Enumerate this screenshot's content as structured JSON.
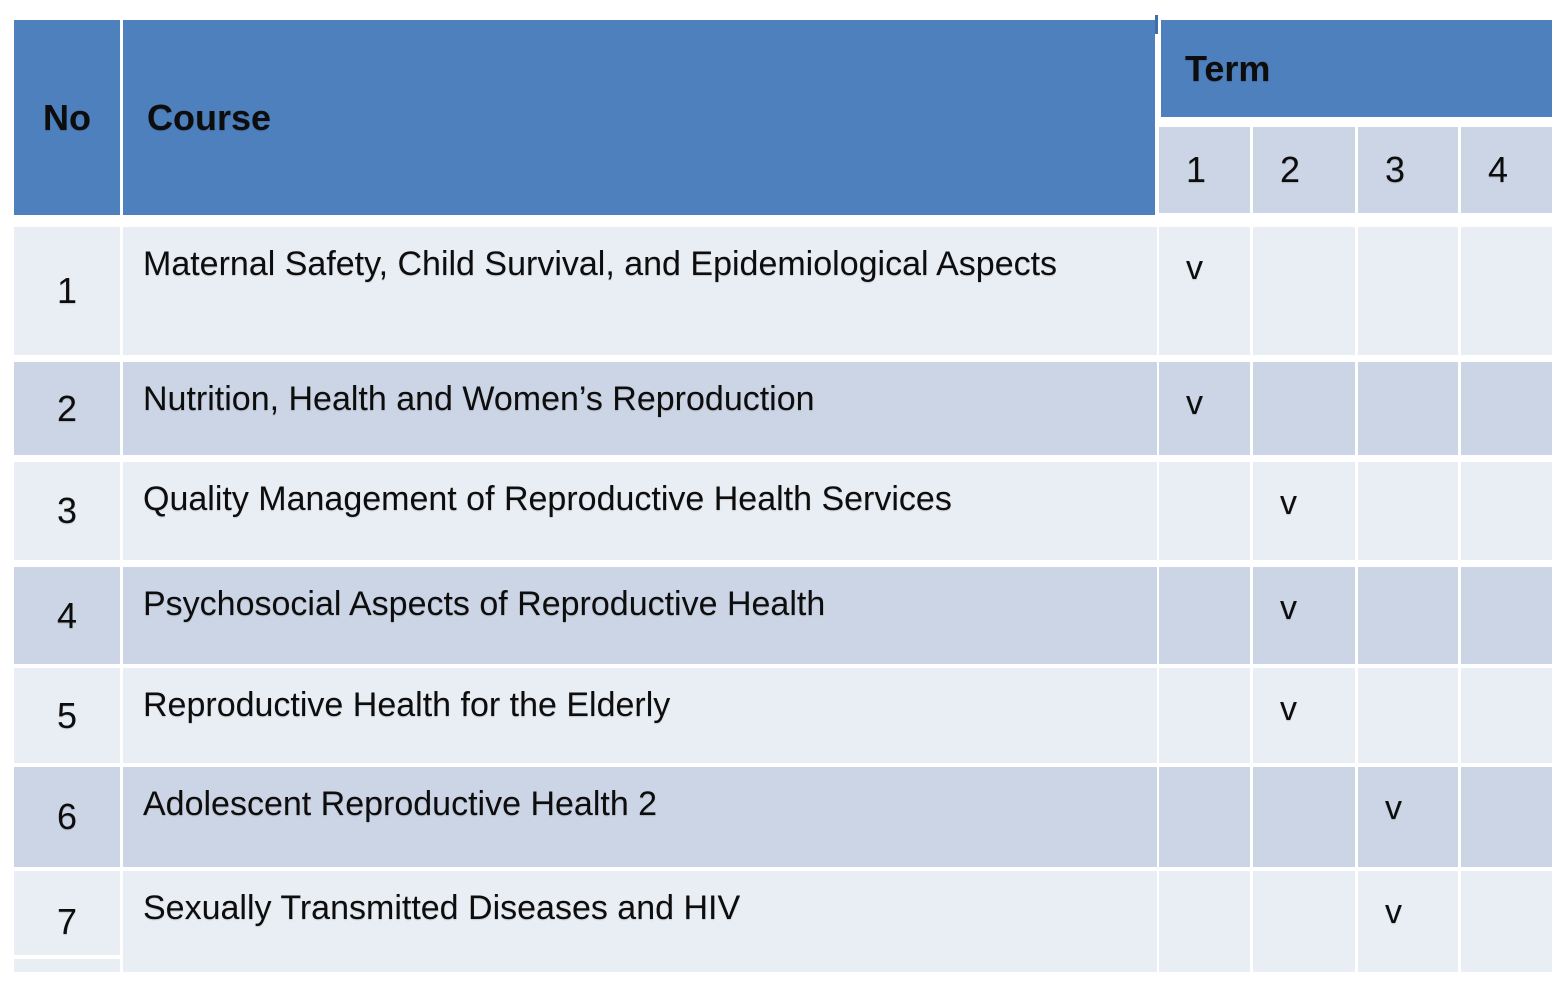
{
  "table": {
    "headers": {
      "no": "No",
      "course": "Course",
      "term": "Term",
      "term_numbers": [
        "1",
        "2",
        "3",
        "4"
      ]
    },
    "rows": [
      {
        "no": "1",
        "course": "Maternal Safety, Child Survival, and Epidemiological Aspects",
        "terms": [
          "v",
          "",
          "",
          ""
        ]
      },
      {
        "no": "2",
        "course": "Nutrition, Health and Women’s Reproduction",
        "terms": [
          "v",
          "",
          "",
          ""
        ]
      },
      {
        "no": "3",
        "course": "Quality Management of Reproductive Health Services",
        "terms": [
          "",
          "v",
          "",
          ""
        ]
      },
      {
        "no": "4",
        "course": "Psychosocial Aspects of Reproductive Health",
        "terms": [
          "",
          "v",
          "",
          ""
        ]
      },
      {
        "no": "5",
        "course": "Reproductive Health for the Elderly",
        "terms": [
          "",
          "v",
          "",
          ""
        ]
      },
      {
        "no": "6",
        "course": "Adolescent Reproductive Health 2",
        "terms": [
          "",
          "",
          "v",
          ""
        ]
      },
      {
        "no": "7",
        "course": "Sexually Transmitted Diseases and HIV",
        "terms": [
          "",
          "",
          "v",
          ""
        ]
      }
    ],
    "colors": {
      "header_blue": "#4d80bd",
      "row_light": "#e9edf4",
      "row_dark": "#ccd5e5",
      "grid_white": "#ffffff",
      "text": "#0d0d0d"
    }
  }
}
